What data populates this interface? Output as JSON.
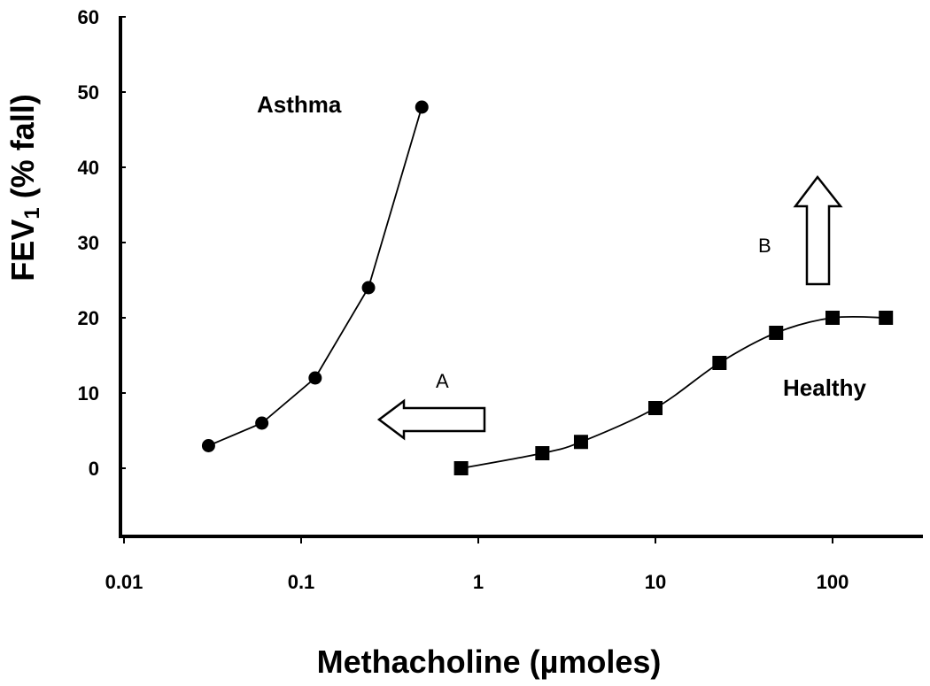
{
  "chart_data": {
    "type": "line",
    "xlabel": "Methacholine (µmoles)",
    "ylabel_main": "FEV",
    "ylabel_sub": "1",
    "ylabel_rest": " (% fall)",
    "x_scale": "log",
    "xlim": [
      0.01,
      300
    ],
    "ylim": [
      -10,
      60
    ],
    "x_ticks": [
      0.01,
      0.1,
      1,
      10,
      100
    ],
    "x_tick_labels": [
      "0.01",
      "0.1",
      "1",
      "10",
      "100"
    ],
    "y_ticks": [
      0,
      10,
      20,
      30,
      40,
      50,
      60
    ],
    "y_tick_labels": [
      "0",
      "10",
      "20",
      "30",
      "40",
      "50",
      "60"
    ],
    "grid": false,
    "series": [
      {
        "name": "Asthma",
        "marker": "circle",
        "x": [
          0.03,
          0.06,
          0.12,
          0.24,
          0.48
        ],
        "y": [
          3,
          6,
          12,
          24,
          48
        ]
      },
      {
        "name": "Healthy",
        "marker": "square",
        "x": [
          0.8,
          2.3,
          3.8,
          10,
          23,
          48,
          100,
          200
        ],
        "y": [
          0,
          2,
          3.5,
          8,
          14,
          18,
          20,
          20
        ]
      }
    ],
    "annotations": [
      {
        "label": "A",
        "arrow": "left"
      },
      {
        "label": "B",
        "arrow": "up"
      }
    ]
  }
}
